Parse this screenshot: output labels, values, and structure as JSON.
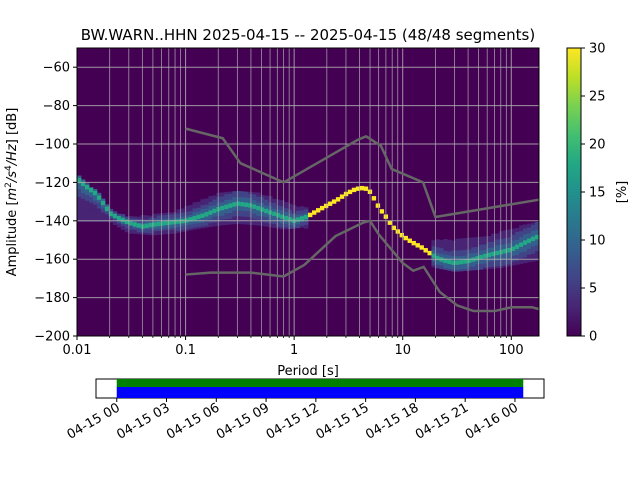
{
  "chart_data": {
    "type": "heatmap",
    "title": "BW.WARN..HHN   2025-04-15 -- 2025-04-15  (48/48 segments)",
    "xlabel": "Period [s]",
    "ylabel_prefix": "Amplitude [",
    "ylabel_unit_m": "m",
    "ylabel_unit_sup2": "2",
    "ylabel_unit_s": "/s",
    "ylabel_unit_sup4": "4",
    "ylabel_unit_hz": "/Hz",
    "ylabel_suffix": "] [dB]",
    "x_scale": "log",
    "xlim": [
      0.01,
      180
    ],
    "ylim": [
      -200,
      -50
    ],
    "x_ticks": [
      {
        "value": 0.01,
        "label": "0.01"
      },
      {
        "value": 0.1,
        "label": "0.1"
      },
      {
        "value": 1,
        "label": "1"
      },
      {
        "value": 10,
        "label": "10"
      },
      {
        "value": 100,
        "label": "100"
      }
    ],
    "y_ticks": [
      {
        "value": -60,
        "label": "−60"
      },
      {
        "value": -80,
        "label": "−80"
      },
      {
        "value": -100,
        "label": "−100"
      },
      {
        "value": -120,
        "label": "−120"
      },
      {
        "value": -140,
        "label": "−140"
      },
      {
        "value": -160,
        "label": "−160"
      },
      {
        "value": -180,
        "label": "−180"
      },
      {
        "value": -200,
        "label": "−200"
      }
    ],
    "colorbar": {
      "label": "[%]",
      "range": [
        0,
        30
      ],
      "ticks": [
        {
          "value": 0,
          "label": "0"
        },
        {
          "value": 5,
          "label": "5"
        },
        {
          "value": 10,
          "label": "10"
        },
        {
          "value": 15,
          "label": "15"
        },
        {
          "value": 20,
          "label": "20"
        },
        {
          "value": 25,
          "label": "25"
        },
        {
          "value": 30,
          "label": "30"
        }
      ]
    },
    "mode_curve": [
      [
        0.01,
        -118
      ],
      [
        0.012,
        -122
      ],
      [
        0.015,
        -126
      ],
      [
        0.018,
        -132
      ],
      [
        0.02,
        -136
      ],
      [
        0.025,
        -139
      ],
      [
        0.03,
        -141
      ],
      [
        0.04,
        -143
      ],
      [
        0.05,
        -142
      ],
      [
        0.07,
        -141
      ],
      [
        0.1,
        -140
      ],
      [
        0.15,
        -137
      ],
      [
        0.2,
        -134
      ],
      [
        0.3,
        -131
      ],
      [
        0.4,
        -132
      ],
      [
        0.5,
        -134
      ],
      [
        0.7,
        -137
      ],
      [
        1.0,
        -140
      ],
      [
        1.3,
        -138
      ],
      [
        1.6,
        -135
      ],
      [
        2.0,
        -132
      ],
      [
        2.5,
        -129
      ],
      [
        3.0,
        -126
      ],
      [
        3.5,
        -124
      ],
      [
        4.0,
        -123
      ],
      [
        4.5,
        -123
      ],
      [
        5.0,
        -125
      ],
      [
        5.5,
        -129
      ],
      [
        6.0,
        -133
      ],
      [
        7.0,
        -138
      ],
      [
        8.0,
        -143
      ],
      [
        10,
        -148
      ],
      [
        12,
        -151
      ],
      [
        15,
        -154
      ],
      [
        20,
        -159
      ],
      [
        25,
        -161
      ],
      [
        30,
        -162
      ],
      [
        40,
        -161
      ],
      [
        60,
        -158
      ],
      [
        100,
        -155
      ],
      [
        150,
        -150
      ],
      [
        180,
        -148
      ]
    ],
    "spread_band": [
      [
        0.02,
        -134,
        -140
      ],
      [
        0.03,
        -138,
        -146
      ],
      [
        0.05,
        -137,
        -147
      ],
      [
        0.08,
        -135,
        -146
      ],
      [
        0.12,
        -131,
        -144
      ],
      [
        0.2,
        -126,
        -142
      ],
      [
        0.3,
        -124,
        -141
      ],
      [
        0.5,
        -126,
        -142
      ],
      [
        0.8,
        -130,
        -144
      ],
      [
        1.2,
        -133,
        -143
      ],
      [
        20,
        -150,
        -164
      ],
      [
        30,
        -150,
        -166
      ],
      [
        50,
        -149,
        -165
      ],
      [
        80,
        -146,
        -164
      ],
      [
        120,
        -143,
        -162
      ],
      [
        180,
        -141,
        -160
      ]
    ],
    "reference_curves": [
      {
        "name": "NHNM",
        "points": [
          [
            0.1,
            -92
          ],
          [
            0.22,
            -97
          ],
          [
            0.32,
            -110
          ],
          [
            0.8,
            -120
          ],
          [
            3.8,
            -98
          ],
          [
            4.6,
            -96
          ],
          [
            6.3,
            -101
          ],
          [
            7.9,
            -113
          ],
          [
            15.4,
            -120
          ],
          [
            20,
            -138
          ],
          [
            180,
            -129
          ]
        ]
      },
      {
        "name": "NLNM",
        "points": [
          [
            0.1,
            -168
          ],
          [
            0.17,
            -167
          ],
          [
            0.4,
            -167
          ],
          [
            0.8,
            -169
          ],
          [
            1.24,
            -163
          ],
          [
            2.4,
            -148
          ],
          [
            4.3,
            -141
          ],
          [
            5.0,
            -140
          ],
          [
            6.0,
            -147
          ],
          [
            10,
            -162
          ],
          [
            12.5,
            -166
          ],
          [
            15.6,
            -164
          ],
          [
            21.9,
            -177
          ],
          [
            31.6,
            -184
          ],
          [
            45,
            -187
          ],
          [
            70,
            -187
          ],
          [
            101,
            -185
          ],
          [
            154,
            -185
          ],
          [
            180,
            -186
          ]
        ]
      }
    ],
    "timeline": {
      "tick_labels": [
        "04-15 00",
        "04-15 03",
        "04-15 06",
        "04-15 09",
        "04-15 12",
        "04-15 15",
        "04-15 18",
        "04-15 21",
        "04-16 00"
      ],
      "start_hour": -1.25,
      "end_hour": 25.75,
      "data_start_hour": 0,
      "data_end_hour": 24.5,
      "colors": {
        "top": "#008000",
        "bottom": "#0000ff"
      }
    }
  }
}
